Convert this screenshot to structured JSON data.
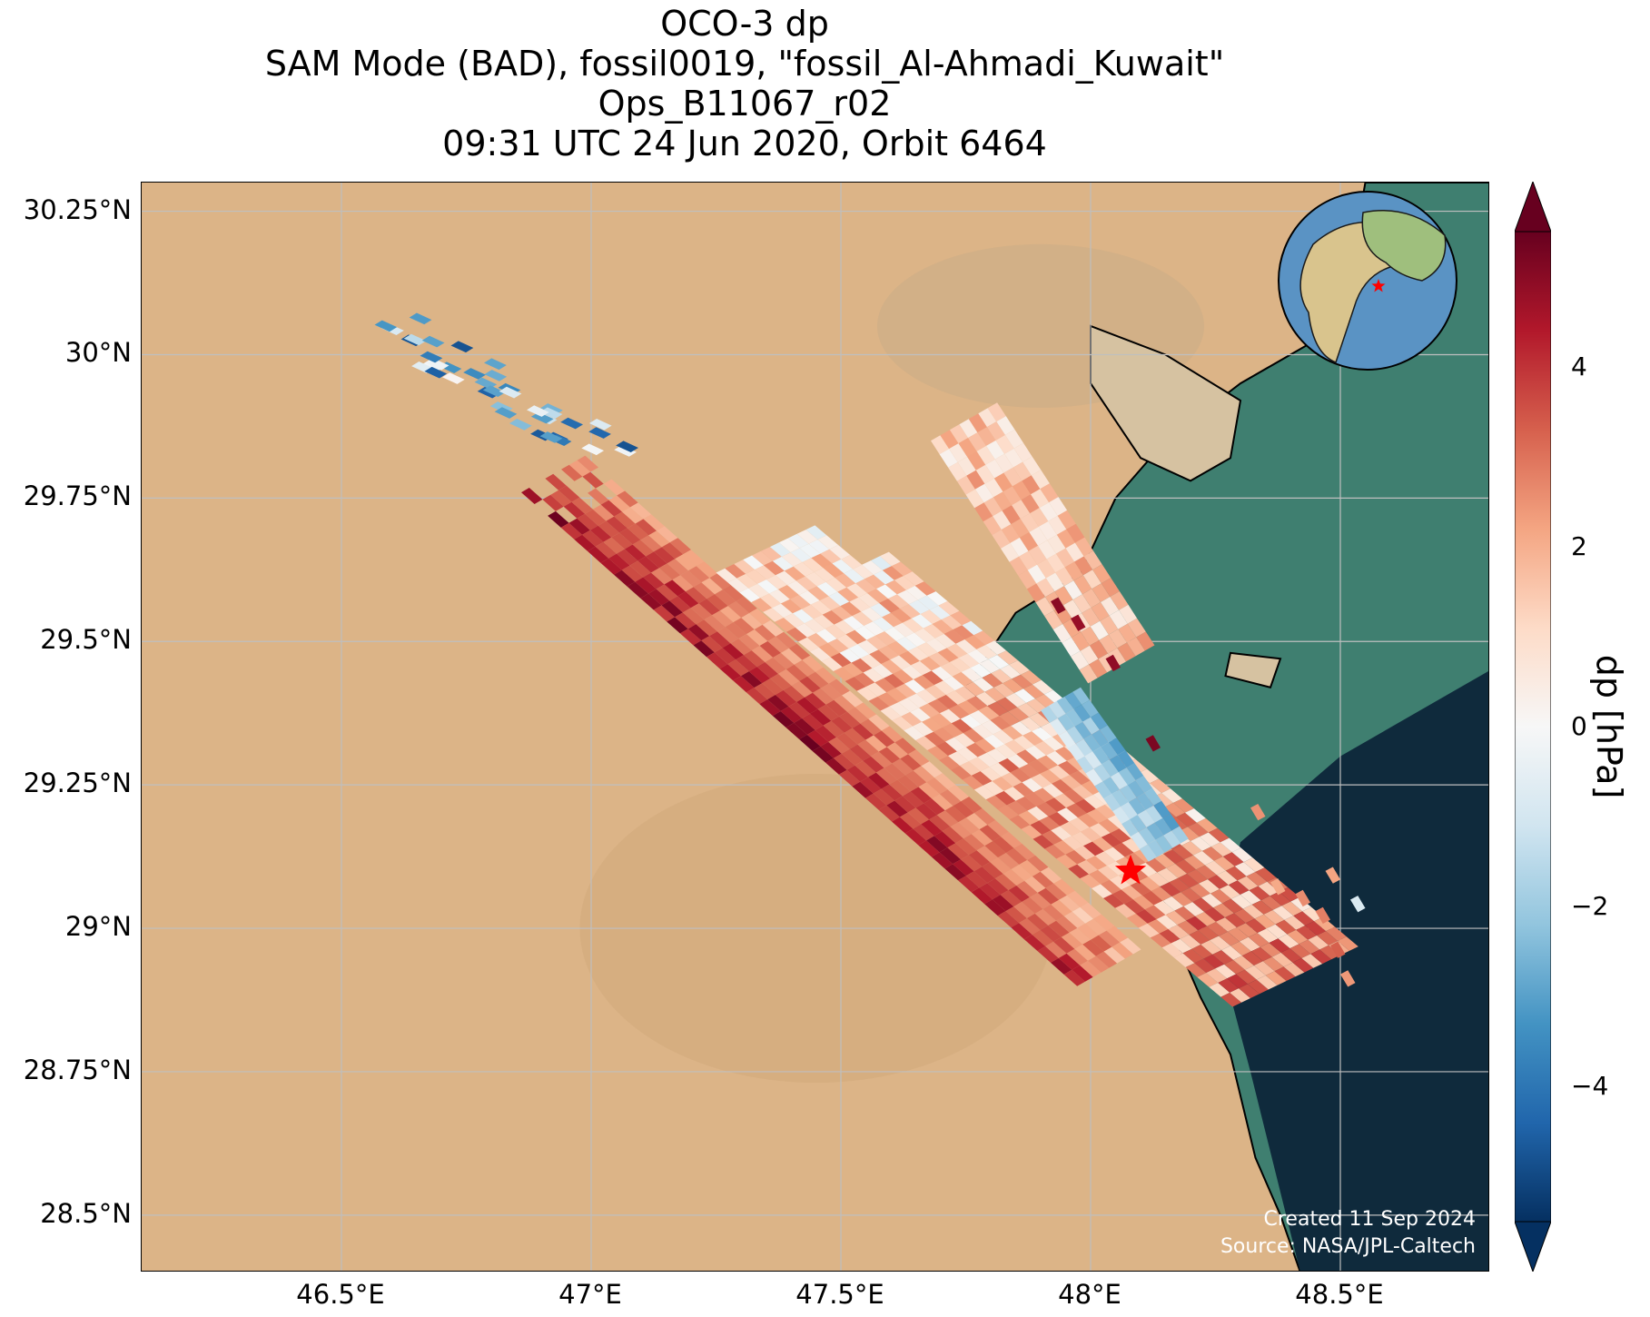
{
  "title": {
    "line1": "OCO-3 dp",
    "line2": "SAM Mode (BAD), fossil0019, \"fossil_Al-Ahmadi_Kuwait\"",
    "line3": "Ops_B11067_r02",
    "line4": "09:31 UTC 24 Jun 2020, Orbit 6464"
  },
  "map": {
    "lon_range": [
      46.1,
      48.8
    ],
    "lat_range": [
      28.4,
      30.3
    ],
    "lat_ticks": [
      "30.25°N",
      "30°N",
      "29.75°N",
      "29.5°N",
      "29.25°N",
      "29°N",
      "28.75°N",
      "28.5°N"
    ],
    "lon_ticks": [
      "46.5°E",
      "47°E",
      "47.5°E",
      "48°E",
      "48.5°E"
    ],
    "gridlines": true,
    "target_marker": {
      "lon": 48.08,
      "lat": 29.1,
      "symbol": "red-star"
    },
    "inset_globe": {
      "placement": "top-right",
      "marker": "red-star"
    },
    "credit_line1": "Created 11 Sep 2024",
    "credit_line2": "Source: NASA/JPL-Caltech",
    "colors": {
      "land": "#dcb487",
      "sea_shallow": "#3f7f70",
      "sea_deep": "#0f2a3c"
    }
  },
  "colorbar": {
    "label": "dp [hPa]",
    "range": [
      -5.5,
      5.5
    ],
    "ticks": [
      "4",
      "2",
      "0",
      "−2",
      "−4"
    ],
    "tick_values": [
      4,
      2,
      0,
      -2,
      -4
    ],
    "colormap": "RdBu_r",
    "extend": "both"
  }
}
